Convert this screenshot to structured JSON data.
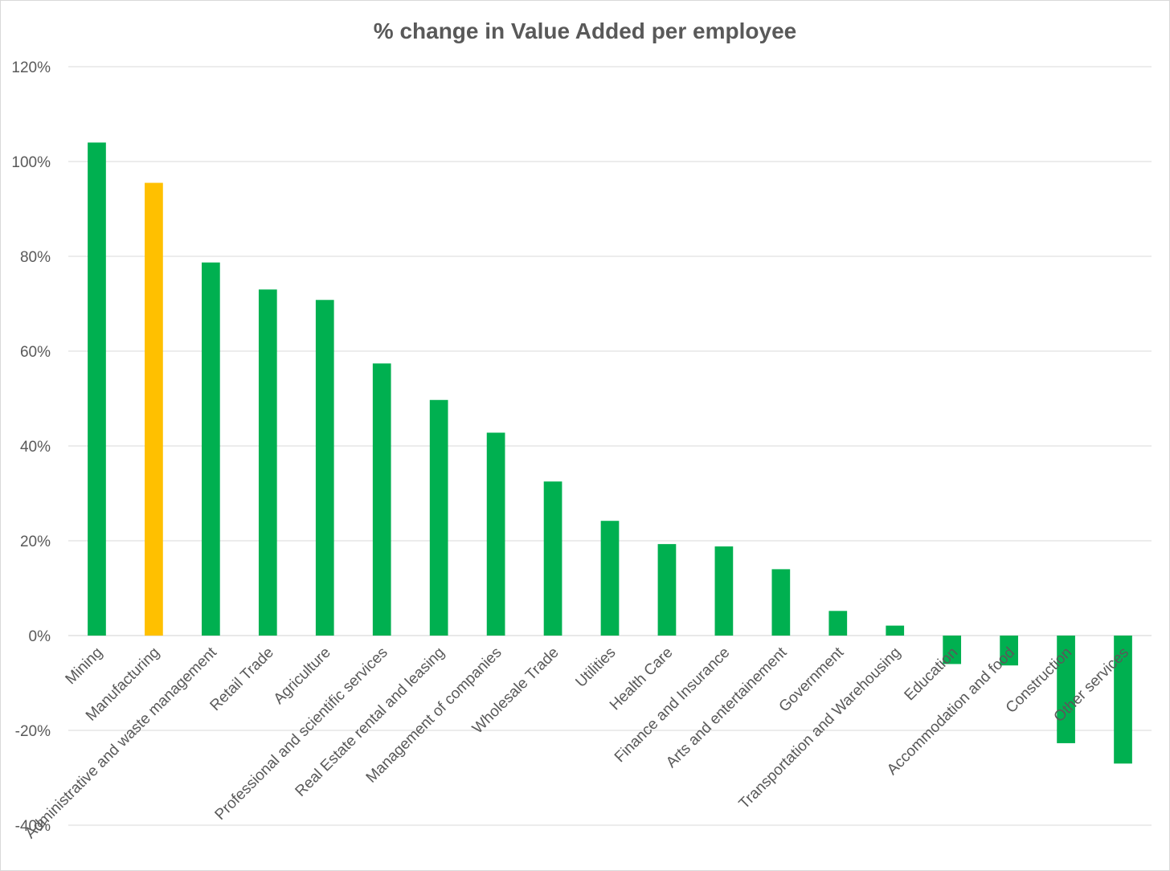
{
  "chart_data": {
    "type": "bar",
    "title": "% change in Value Added per employee",
    "xlabel": "",
    "ylabel": "",
    "ylim": [
      -40,
      120
    ],
    "ytick_step": 20,
    "y_tick_labels": [
      "-40%",
      "-20%",
      "0%",
      "20%",
      "40%",
      "60%",
      "80%",
      "100%",
      "120%"
    ],
    "grid": true,
    "legend": "none",
    "categories": [
      "Mining",
      "Manufacturing",
      "Administrative and waste management",
      "Retail Trade",
      "Agriculture",
      "Professional and scientific services",
      "Real Estate rental and leasing",
      "Management of companies",
      "Wholesale Trade",
      "Utilities",
      "Health Care",
      "Finance and Insurance",
      "Arts and entertainement",
      "Government",
      "Transportation and Warehousing",
      "Education",
      "Accommodation and food",
      "Construction",
      "Other services"
    ],
    "values": [
      104,
      95.5,
      78.7,
      73,
      70.8,
      57.4,
      49.7,
      42.8,
      32.5,
      24.2,
      19.3,
      18.8,
      14,
      5.2,
      2.1,
      -6,
      -6.3,
      -22.7,
      -27
    ],
    "colors": {
      "default": "#00b050",
      "highlight": "#ffc000"
    },
    "highlight_category": "Manufacturing"
  }
}
